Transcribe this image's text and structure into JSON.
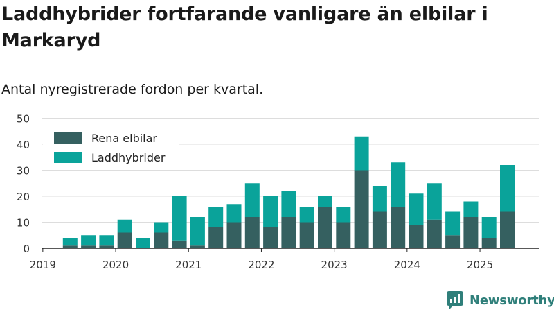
{
  "title": "Laddhybrider fortfarande vanligare än elbilar i Markaryd",
  "subtitle": "Antal nyregistrerade fordon per kvartal.",
  "brand": {
    "name": "Newsworthy",
    "icon": "newsworthy-logo-icon"
  },
  "colors": {
    "elbilar": "#356060",
    "laddhybrider": "#0aa39a",
    "brand": "#2f7f7a"
  },
  "chart_data": {
    "type": "bar",
    "stacked": true,
    "categories": [
      "2019-Q1",
      "2019-Q2",
      "2019-Q3",
      "2019-Q4",
      "2020-Q1",
      "2020-Q2",
      "2020-Q3",
      "2020-Q4",
      "2021-Q1",
      "2021-Q2",
      "2021-Q3",
      "2021-Q4",
      "2022-Q1",
      "2022-Q2",
      "2022-Q3",
      "2022-Q4",
      "2023-Q1",
      "2023-Q2",
      "2023-Q3",
      "2023-Q4",
      "2024-Q1",
      "2024-Q2",
      "2024-Q3",
      "2024-Q4",
      "2025-Q1",
      "2025-Q2"
    ],
    "series": [
      {
        "name": "Rena elbilar",
        "color": "#356060",
        "values": [
          0,
          1,
          1,
          1,
          6,
          0,
          6,
          3,
          1,
          8,
          10,
          12,
          8,
          12,
          10,
          16,
          10,
          30,
          14,
          16,
          9,
          11,
          5,
          12,
          4,
          14
        ]
      },
      {
        "name": "Laddhybrider",
        "color": "#0aa39a",
        "values": [
          0,
          3,
          4,
          4,
          5,
          4,
          4,
          17,
          11,
          8,
          7,
          13,
          12,
          10,
          6,
          4,
          6,
          13,
          10,
          17,
          12,
          14,
          9,
          6,
          8,
          18
        ]
      }
    ],
    "x_ticks": [
      "2019",
      "2020",
      "2021",
      "2022",
      "2023",
      "2024",
      "2025"
    ],
    "y_ticks": [
      0,
      10,
      20,
      30,
      40,
      50
    ],
    "ylim": [
      0,
      50
    ],
    "grid": true,
    "legend": "top-left"
  }
}
